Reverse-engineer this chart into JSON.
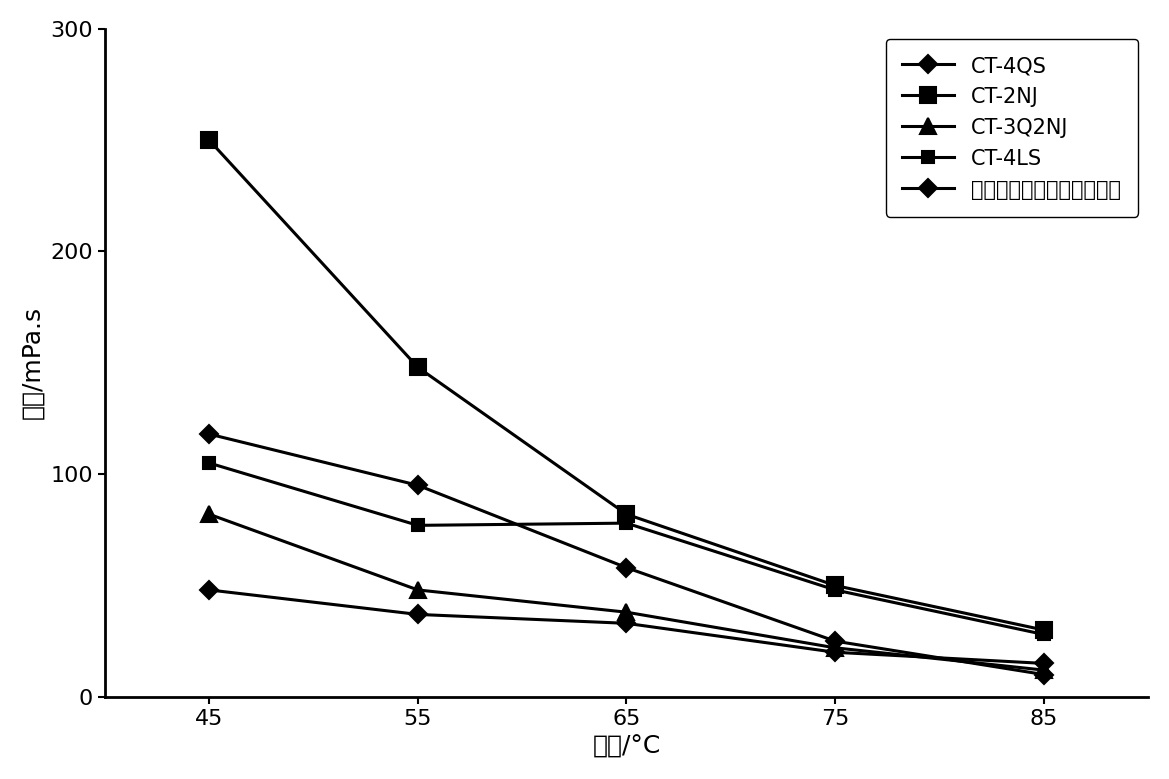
{
  "x": [
    45,
    55,
    65,
    75,
    85
  ],
  "series": [
    {
      "label": "CT-4QS",
      "values": [
        118,
        95,
        58,
        25,
        10
      ],
      "marker": "D",
      "markersize": 9,
      "color": "#000000",
      "linewidth": 2.2,
      "filled": true
    },
    {
      "label": "CT-2NJ",
      "values": [
        250,
        148,
        82,
        50,
        30
      ],
      "marker": "s",
      "markersize": 11,
      "color": "#000000",
      "linewidth": 2.2,
      "filled": true
    },
    {
      "label": "CT-3Q2NJ",
      "values": [
        82,
        48,
        38,
        22,
        12
      ],
      "marker": "^",
      "markersize": 11,
      "color": "#000000",
      "linewidth": 2.2,
      "filled": true
    },
    {
      "label": "CT-4LS",
      "values": [
        105,
        77,
        78,
        48,
        28
      ],
      "marker": "s",
      "markersize": 8,
      "color": "#000000",
      "linewidth": 2.2,
      "filled": true
    },
    {
      "label": "大分子部分水解聚丙烯酯胺",
      "values": [
        48,
        37,
        33,
        20,
        15
      ],
      "marker": "D",
      "markersize": 9,
      "color": "#000000",
      "linewidth": 2.2,
      "filled": true
    }
  ],
  "xlabel": "温度/°C",
  "ylabel": "粘度/mPa.s",
  "xlim": [
    40,
    90
  ],
  "ylim": [
    0,
    300
  ],
  "xticks": [
    45,
    55,
    65,
    75,
    85
  ],
  "yticks": [
    0,
    100,
    200,
    300
  ],
  "legend_loc": "upper right",
  "background_color": "#ffffff",
  "xlabel_fontsize": 18,
  "ylabel_fontsize": 18,
  "tick_fontsize": 16,
  "legend_fontsize": 15
}
